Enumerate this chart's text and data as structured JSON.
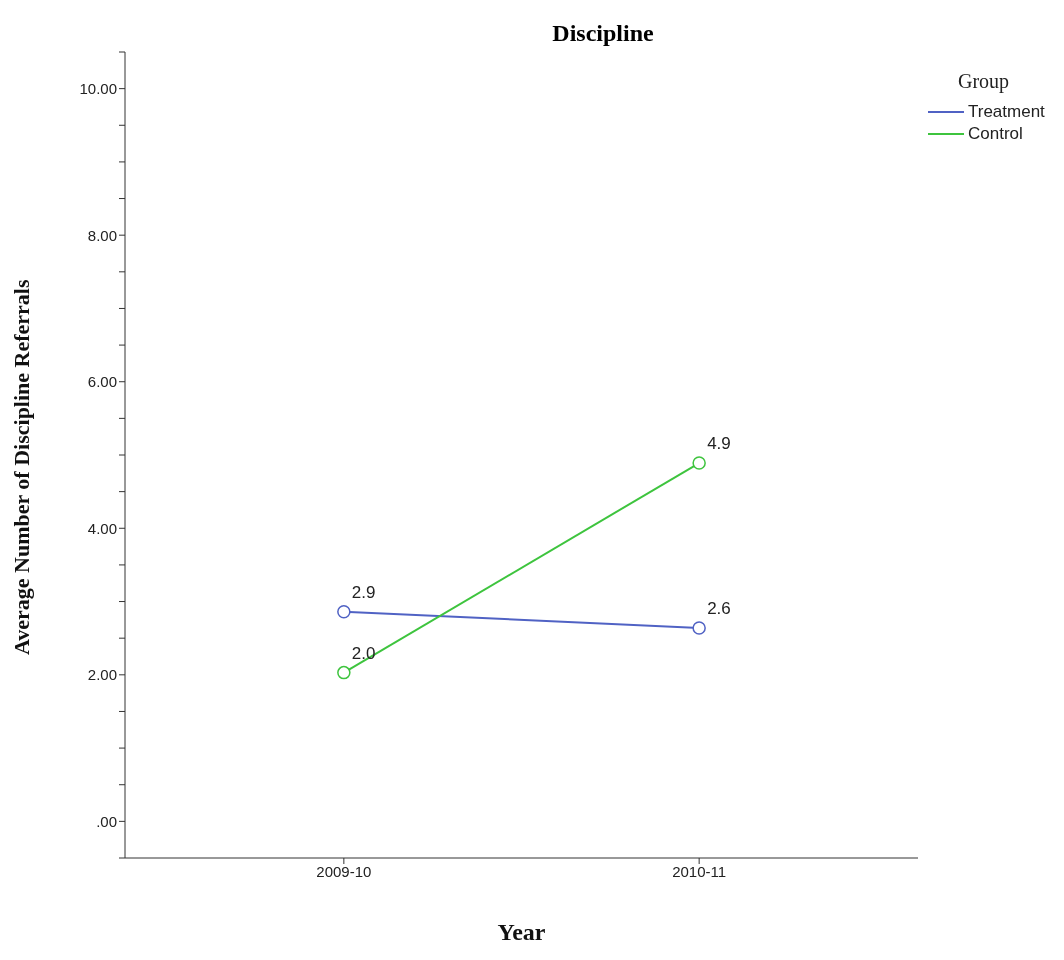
{
  "chart_data": {
    "type": "line",
    "title": "Discipline",
    "xlabel": "Year",
    "ylabel": "Average Number of Discipline Referrals",
    "legend_title": "Group",
    "categories": [
      "2009-10",
      "2010-11"
    ],
    "series": [
      {
        "name": "Treatment",
        "color": "#5062c4",
        "values": [
          2.86,
          2.64
        ],
        "value_labels": [
          "2.9",
          "2.6"
        ]
      },
      {
        "name": "Control",
        "color": "#3ec43e",
        "values": [
          2.03,
          4.89
        ],
        "value_labels": [
          "2.0",
          "4.9"
        ]
      }
    ],
    "ylim": [
      -0.5,
      10.5
    ],
    "yticks": [
      {
        "value": -0.5,
        "label": null
      },
      {
        "value": 0,
        "label": ".00"
      },
      {
        "value": 0.5,
        "label": null
      },
      {
        "value": 1,
        "label": null
      },
      {
        "value": 1.5,
        "label": null
      },
      {
        "value": 2,
        "label": "2.00"
      },
      {
        "value": 2.5,
        "label": null
      },
      {
        "value": 3,
        "label": null
      },
      {
        "value": 3.5,
        "label": null
      },
      {
        "value": 4,
        "label": "4.00"
      },
      {
        "value": 4.5,
        "label": null
      },
      {
        "value": 5,
        "label": null
      },
      {
        "value": 5.5,
        "label": null
      },
      {
        "value": 6,
        "label": "6.00"
      },
      {
        "value": 6.5,
        "label": null
      },
      {
        "value": 7,
        "label": null
      },
      {
        "value": 7.5,
        "label": null
      },
      {
        "value": 8,
        "label": "8.00"
      },
      {
        "value": 8.5,
        "label": null
      },
      {
        "value": 9,
        "label": null
      },
      {
        "value": 9.5,
        "label": null
      },
      {
        "value": 10,
        "label": "10.00"
      },
      {
        "value": 10.5,
        "label": null
      }
    ],
    "grid": false,
    "legend": "top right",
    "marker": "circle",
    "line_style": "solid"
  }
}
